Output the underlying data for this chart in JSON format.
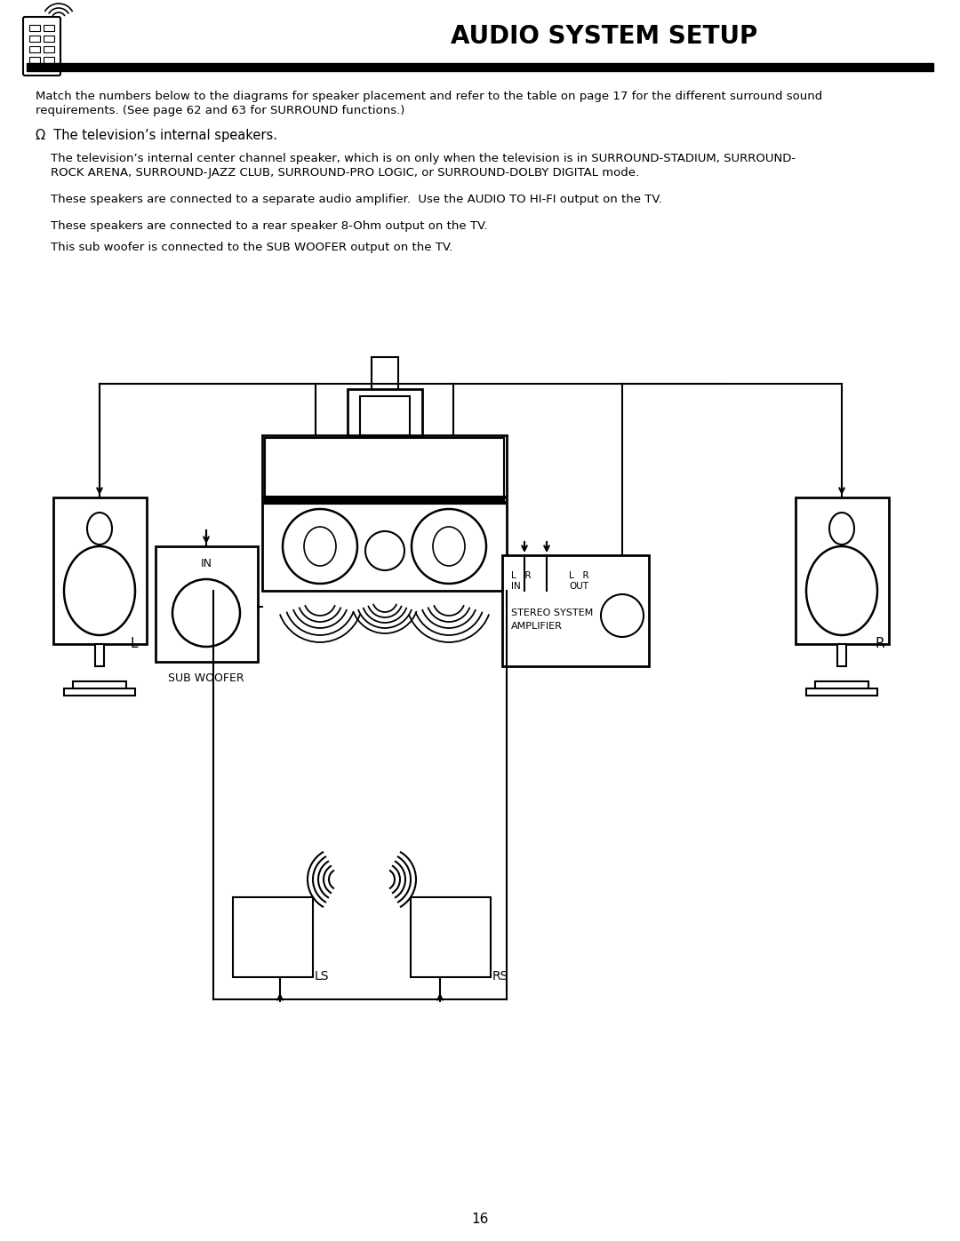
{
  "title": "AUDIO SYSTEM SETUP",
  "page_number": "16",
  "bg_color": "#ffffff",
  "text_color": "#000000",
  "body_text1a": "Match the numbers below to the diagrams for speaker placement and refer to the table on page 17 for the different surround sound",
  "body_text1b": "requirements. (See page 62 and 63 for SURROUND functions.)",
  "omega_text": "Ω  The television’s internal speakers.",
  "body_text2a": "    The television’s internal center channel speaker, which is on only when the television is in SURROUND-STADIUM, SURROUND-",
  "body_text2b": "    ROCK ARENA, SURROUND-JAZZ CLUB, SURROUND-PRO LOGIC, or SURROUND-DOLBY DIGITAL mode.",
  "body_text3": "    These speakers are connected to a separate audio amplifier.  Use the AUDIO TO HI-FI output on the TV.",
  "body_text4": "    These speakers are connected to a rear speaker 8-Ohm output on the TV.",
  "body_text5": "    This sub woofer is connected to the SUB WOOFER output on the TV."
}
